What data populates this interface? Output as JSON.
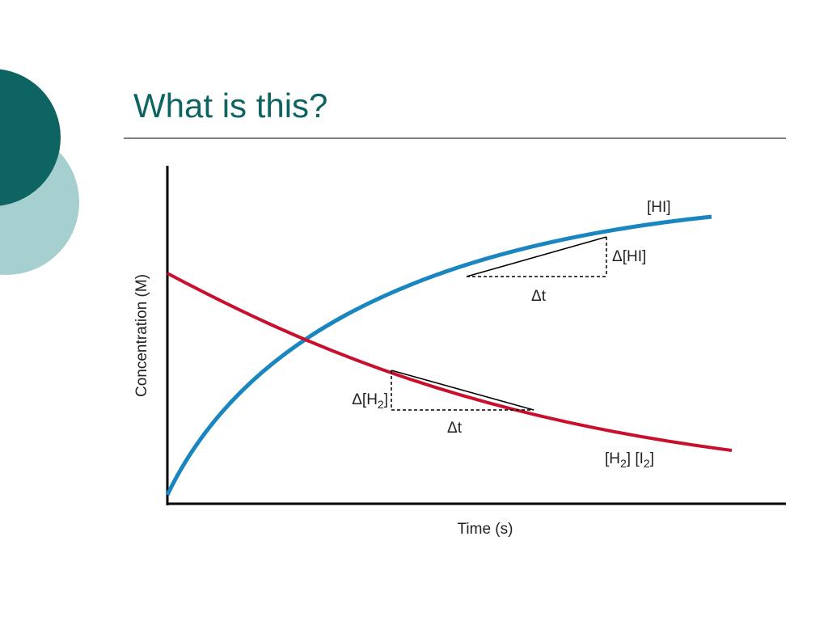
{
  "header": {
    "title": "What is this?"
  },
  "diagram": {
    "y_axis_label": "Concentration (M)",
    "x_axis_label": "Time (s)",
    "hi_label": "[HI]",
    "delta_hi": "Δ[HI]",
    "delta_t_hi": "Δt",
    "delta_h2": [
      "Δ[H",
      "2",
      "]"
    ],
    "delta_t_h2": "Δt",
    "h2_i2": [
      "[H",
      "2",
      "] [I",
      "2",
      "]"
    ]
  }
}
